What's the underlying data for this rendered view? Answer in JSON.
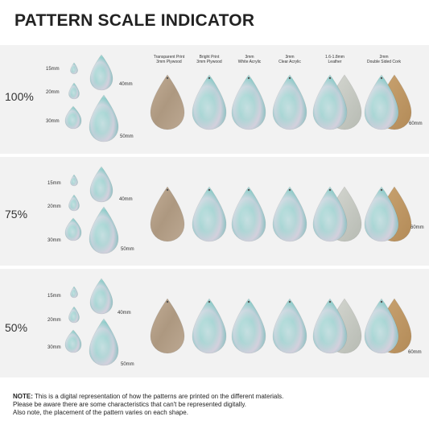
{
  "title": "PATTERN SCALE INDICATOR",
  "rows": [
    {
      "label": "100%"
    },
    {
      "label": "75%"
    },
    {
      "label": "50%"
    }
  ],
  "sizes": {
    "s15": "15mm",
    "s20": "20mm",
    "s30": "30mm",
    "s40": "40mm",
    "s50": "50mm",
    "s60": "60mm"
  },
  "materials": [
    {
      "line1": "Transparent Print",
      "line2": "3mm Plywood"
    },
    {
      "line1": "Bright Print",
      "line2": "3mm Plywood"
    },
    {
      "line1": "3mm",
      "line2": "White Acrylic"
    },
    {
      "line1": "3mm",
      "line2": "Clear Acrylic"
    },
    {
      "line1": "1.6-1.8mm",
      "line2": "Leather"
    },
    {
      "line1": "2mm",
      "line2": "Double Sided Cork"
    }
  ],
  "note": {
    "label": "NOTE:",
    "line1": " This is a digital representation of how the patterns are printed on the different materials.",
    "line2": "Please be aware there are some characteristics that can't be represented digitally.",
    "line3": "Also note, the placement of the pattern varies on each shape."
  },
  "colors": {
    "band": "#f2f2f2",
    "plywood": "#b59f86",
    "cork": "#c09a6a",
    "leather": "#c6c9c2",
    "marble_teal": "#7fc7c3",
    "marble_pink": "#e6c9d6"
  }
}
